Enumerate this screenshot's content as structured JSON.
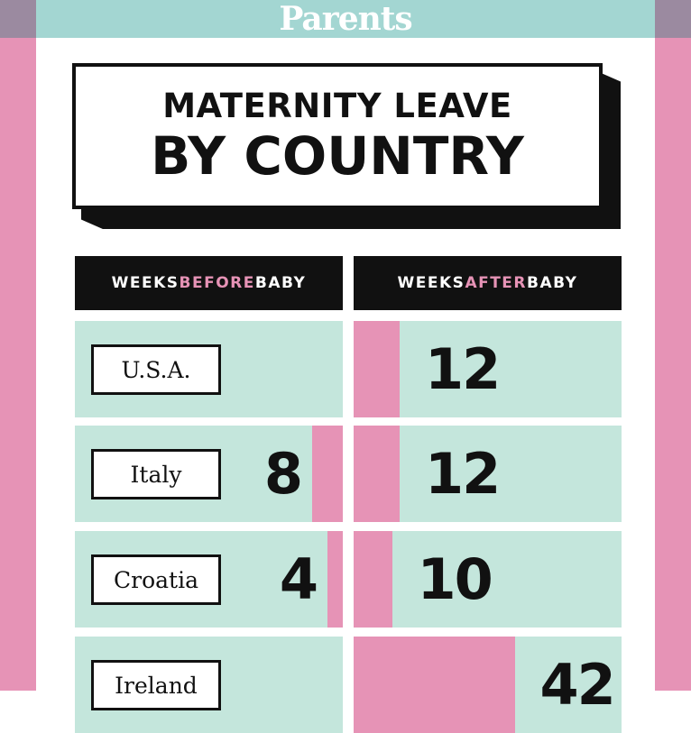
{
  "brand": "Parents",
  "title": {
    "line1": "MATERNITY LEAVE",
    "line2": "BY COUNTRY"
  },
  "headers": {
    "before": {
      "pre": "WEEKS ",
      "highlight": "BEFORE",
      "post": " BABY"
    },
    "after": {
      "pre": "WEEKS ",
      "highlight": "AFTER",
      "post": " BABY"
    }
  },
  "colors": {
    "pink": "#e693b6",
    "mint": "#c4e6dc",
    "teal_bar": "#a3d6d2",
    "black": "#111111"
  },
  "chart_data": {
    "type": "bar",
    "categories": [
      "U.S.A.",
      "Italy",
      "Croatia",
      "Ireland"
    ],
    "series": [
      {
        "name": "WEEKS BEFORE BABY",
        "values": [
          null,
          8,
          4,
          null
        ]
      },
      {
        "name": "WEEKS AFTER BABY",
        "values": [
          12,
          12,
          10,
          42
        ]
      }
    ],
    "labels": {
      "before": [
        "",
        "8",
        "4",
        ""
      ],
      "after": [
        "12",
        "12",
        "10",
        "42"
      ]
    }
  }
}
